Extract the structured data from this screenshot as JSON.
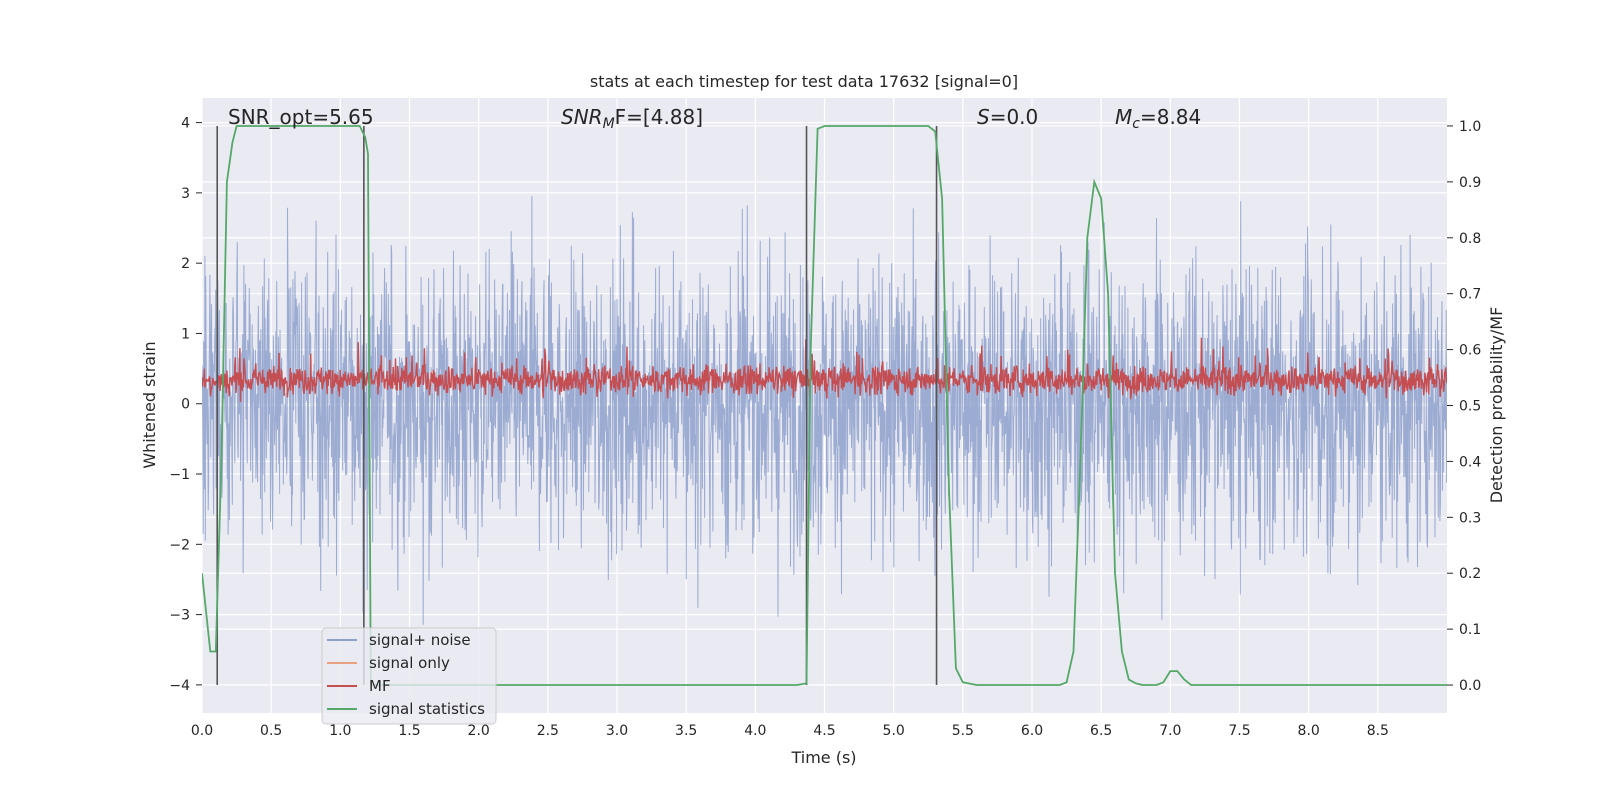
{
  "chart_data": {
    "type": "line",
    "title": "stats at each timestep for test data 17632 [signal=0]",
    "xlabel": "Time (s)",
    "ylabel_left": "Whitened strain",
    "ylabel_right": "Detection probability/MF",
    "xlim": [
      0.0,
      9.0
    ],
    "ylim_left": [
      -4.4,
      4.35
    ],
    "ylim_right": [
      -0.05,
      1.05
    ],
    "x_ticks": [
      0.0,
      0.5,
      1.0,
      1.5,
      2.0,
      2.5,
      3.0,
      3.5,
      4.0,
      4.5,
      5.0,
      5.5,
      6.0,
      6.5,
      7.0,
      7.5,
      8.0,
      8.5
    ],
    "x_tick_labels": [
      "0.0",
      "0.5",
      "1.0",
      "1.5",
      "2.0",
      "2.5",
      "3.0",
      "3.5",
      "4.0",
      "4.5",
      "5.0",
      "5.5",
      "6.0",
      "6.5",
      "7.0",
      "7.5",
      "8.0",
      "8.5"
    ],
    "y_left_ticks": [
      4,
      3,
      2,
      1,
      0,
      -1,
      -2,
      -3,
      -4
    ],
    "y_left_tick_labels": [
      "4",
      "3",
      "2",
      "1",
      "0",
      "−1",
      "−2",
      "−3",
      "−4"
    ],
    "y_right_ticks": [
      1.0,
      0.9,
      0.8,
      0.7,
      0.6,
      0.5,
      0.4,
      0.3,
      0.2,
      0.1,
      0.0
    ],
    "y_right_tick_labels": [
      "1.0",
      "0.9",
      "0.8",
      "0.7",
      "0.6",
      "0.5",
      "0.4",
      "0.3",
      "0.2",
      "0.1",
      "0.0"
    ],
    "annotations": {
      "snr_opt": "SNR_opt=5.65",
      "snr_mf_main": "SNR",
      "snr_mf_sub": "M",
      "snr_mf_rest": "F=[4.88]",
      "s_main": "S",
      "s_rest": "=0.0",
      "mc_main": "M",
      "mc_sub": "c",
      "mc_rest": "=8.84"
    },
    "legend": {
      "placement": "lower-left",
      "entries": [
        "signal+ noise",
        "signal only",
        "MF",
        "signal statistics"
      ]
    },
    "colors": {
      "signal_noise": "#8da0cb",
      "signal_only": "#e8a07e",
      "mf": "#c44e52",
      "signal_statistics": "#55a868",
      "axes_bg": "#eaeaf2",
      "grid": "#ffffff",
      "vline": "#555555"
    },
    "series": [
      {
        "name": "signal statistics",
        "axis": "right",
        "x": [
          0.0,
          0.06,
          0.1,
          0.14,
          0.18,
          0.22,
          0.25,
          0.3,
          0.4,
          0.5,
          0.6,
          0.8,
          1.0,
          1.1,
          1.14,
          1.18,
          1.2,
          1.22,
          1.25,
          1.3,
          1.5,
          2.0,
          2.5,
          3.0,
          3.5,
          4.0,
          4.3,
          4.37,
          4.4,
          4.45,
          4.5,
          4.6,
          4.8,
          5.0,
          5.2,
          5.25,
          5.3,
          5.35,
          5.4,
          5.45,
          5.5,
          5.6,
          5.8,
          6.0,
          6.2,
          6.25,
          6.3,
          6.35,
          6.4,
          6.45,
          6.5,
          6.55,
          6.6,
          6.65,
          6.7,
          6.75,
          6.8,
          6.9,
          6.95,
          7.0,
          7.05,
          7.1,
          7.15,
          7.2,
          7.5,
          8.0,
          8.5,
          9.0
        ],
        "y": [
          0.2,
          0.06,
          0.06,
          0.4,
          0.9,
          0.97,
          1.0,
          1.0,
          1.0,
          1.0,
          1.0,
          1.0,
          1.0,
          1.0,
          1.0,
          0.98,
          0.95,
          0.0,
          0.0,
          0.0,
          0.0,
          0.0,
          0.0,
          0.0,
          0.0,
          0.0,
          0.0,
          0.003,
          0.6,
          0.995,
          1.0,
          1.0,
          1.0,
          1.0,
          1.0,
          1.0,
          0.99,
          0.87,
          0.35,
          0.03,
          0.005,
          0.0,
          0.0,
          0.0,
          0.0,
          0.005,
          0.06,
          0.4,
          0.8,
          0.9,
          0.87,
          0.7,
          0.2,
          0.06,
          0.01,
          0.003,
          0.0,
          0.0,
          0.005,
          0.025,
          0.025,
          0.01,
          0.0,
          0.0,
          0.0,
          0.0,
          0.0,
          0.0
        ]
      },
      {
        "name": "signal+ noise",
        "axis": "left",
        "description": "dense whitened noise trace, roughly within -4 to 4, mostly within -2.5 to 2.5"
      },
      {
        "name": "MF",
        "axis": "right",
        "description": "matched filter trace fluctuating roughly between 0.5 and 0.6"
      }
    ],
    "vertical_lines_x": [
      0.11,
      1.17,
      4.37,
      5.31
    ]
  }
}
